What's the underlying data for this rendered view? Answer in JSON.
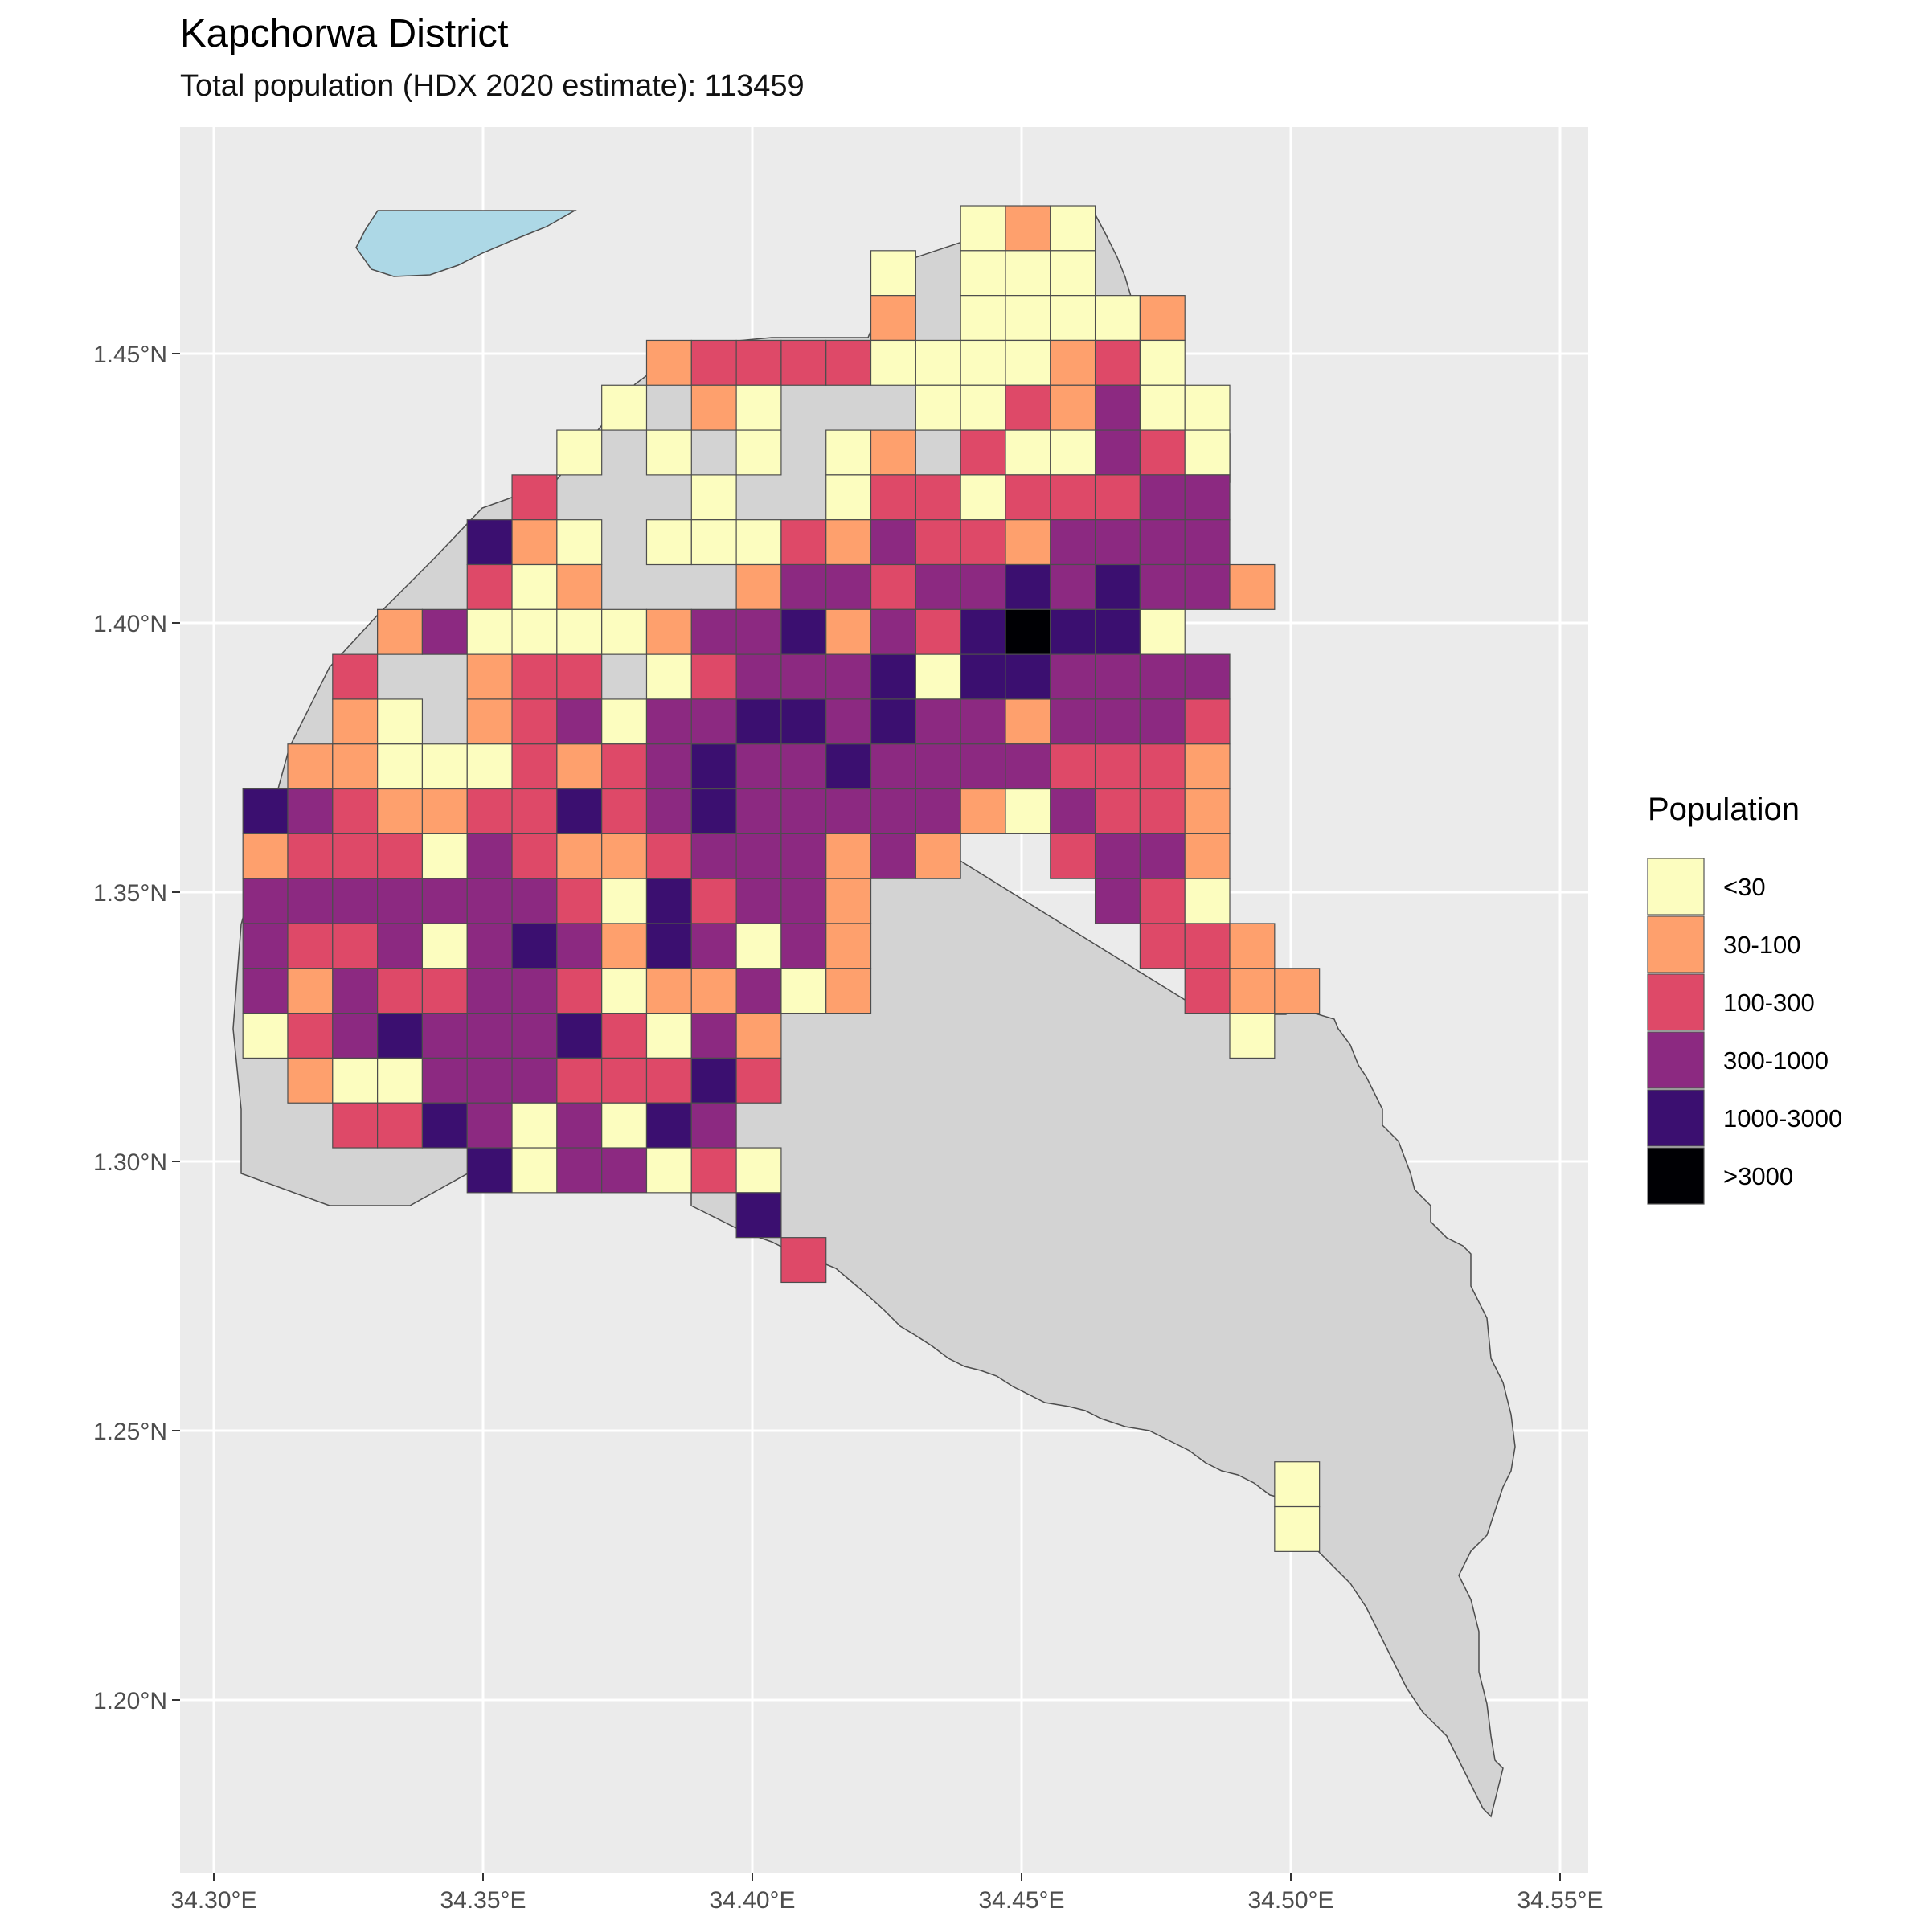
{
  "title": "Kapchorwa District",
  "subtitle": "Total population (HDX 2020 estimate): 113459",
  "chart_data": {
    "type": "heatmap",
    "x_ticks": [
      "34.30°E",
      "34.35°E",
      "34.40°E",
      "34.45°E",
      "34.50°E",
      "34.55°E"
    ],
    "y_ticks": [
      "1.20°N",
      "1.25°N",
      "1.30°N",
      "1.35°N",
      "1.40°N",
      "1.45°N"
    ],
    "xlim": [
      34.293,
      34.554
    ],
    "ylim": [
      1.172,
      1.486
    ],
    "grid": true,
    "cell_size_deg": 0.00833,
    "grid_origin": {
      "lon": 34.3054,
      "lat": 1.47746
    },
    "legend": {
      "title": "Population",
      "placement": "right",
      "classes": [
        {
          "label": "<30",
          "color": "#FCFDBF"
        },
        {
          "label": "30-100",
          "color": "#FEA06D"
        },
        {
          "label": "100-300",
          "color": "#DE4968"
        },
        {
          "label": "300-1000",
          "color": "#8C2981"
        },
        {
          "label": "1000-3000",
          "color": "#3B0F70"
        },
        {
          "label": ">3000",
          "color": "#000004"
        }
      ]
    },
    "district_fill": "#d3d3d3",
    "lake_fill": "#add8e6",
    "cells": [
      [
        16,
        0,
        0
      ],
      [
        17,
        0,
        1
      ],
      [
        18,
        0,
        0
      ],
      [
        14,
        1,
        0
      ],
      [
        16,
        1,
        0
      ],
      [
        17,
        1,
        0
      ],
      [
        18,
        1,
        0
      ],
      [
        14,
        2,
        1
      ],
      [
        16,
        2,
        0
      ],
      [
        17,
        2,
        0
      ],
      [
        18,
        2,
        0
      ],
      [
        19,
        2,
        0
      ],
      [
        20,
        2,
        1
      ],
      [
        9,
        3,
        1
      ],
      [
        10,
        3,
        2
      ],
      [
        11,
        3,
        2
      ],
      [
        12,
        3,
        2
      ],
      [
        13,
        3,
        2
      ],
      [
        14,
        3,
        0
      ],
      [
        15,
        3,
        0
      ],
      [
        16,
        3,
        0
      ],
      [
        17,
        3,
        0
      ],
      [
        18,
        3,
        1
      ],
      [
        19,
        3,
        2
      ],
      [
        20,
        3,
        0
      ],
      [
        8,
        4,
        0
      ],
      [
        10,
        4,
        1
      ],
      [
        11,
        4,
        0
      ],
      [
        15,
        4,
        0
      ],
      [
        16,
        4,
        0
      ],
      [
        17,
        4,
        2
      ],
      [
        18,
        4,
        1
      ],
      [
        19,
        4,
        3
      ],
      [
        20,
        4,
        0
      ],
      [
        21,
        4,
        0
      ],
      [
        7,
        5,
        0
      ],
      [
        9,
        5,
        0
      ],
      [
        11,
        5,
        0
      ],
      [
        13,
        5,
        0
      ],
      [
        14,
        5,
        1
      ],
      [
        16,
        5,
        2
      ],
      [
        17,
        5,
        0
      ],
      [
        18,
        5,
        0
      ],
      [
        19,
        5,
        3
      ],
      [
        20,
        5,
        2
      ],
      [
        21,
        5,
        0
      ],
      [
        6,
        6,
        2
      ],
      [
        10,
        6,
        0
      ],
      [
        13,
        6,
        0
      ],
      [
        14,
        6,
        2
      ],
      [
        15,
        6,
        2
      ],
      [
        16,
        6,
        0
      ],
      [
        17,
        6,
        2
      ],
      [
        18,
        6,
        2
      ],
      [
        19,
        6,
        2
      ],
      [
        20,
        6,
        3
      ],
      [
        21,
        6,
        3
      ],
      [
        5,
        7,
        4
      ],
      [
        6,
        7,
        1
      ],
      [
        7,
        7,
        0
      ],
      [
        9,
        7,
        0
      ],
      [
        10,
        7,
        0
      ],
      [
        11,
        7,
        0
      ],
      [
        12,
        7,
        2
      ],
      [
        13,
        7,
        1
      ],
      [
        14,
        7,
        3
      ],
      [
        15,
        7,
        2
      ],
      [
        16,
        7,
        2
      ],
      [
        17,
        7,
        1
      ],
      [
        18,
        7,
        3
      ],
      [
        19,
        7,
        3
      ],
      [
        20,
        7,
        3
      ],
      [
        21,
        7,
        3
      ],
      [
        5,
        8,
        2
      ],
      [
        6,
        8,
        0
      ],
      [
        7,
        8,
        1
      ],
      [
        11,
        8,
        1
      ],
      [
        12,
        8,
        3
      ],
      [
        13,
        8,
        3
      ],
      [
        14,
        8,
        2
      ],
      [
        15,
        8,
        3
      ],
      [
        16,
        8,
        3
      ],
      [
        17,
        8,
        4
      ],
      [
        18,
        8,
        3
      ],
      [
        19,
        8,
        4
      ],
      [
        20,
        8,
        3
      ],
      [
        21,
        8,
        3
      ],
      [
        22,
        8,
        1
      ],
      [
        3,
        9,
        1
      ],
      [
        4,
        9,
        3
      ],
      [
        5,
        9,
        0
      ],
      [
        6,
        9,
        0
      ],
      [
        7,
        9,
        0
      ],
      [
        8,
        9,
        0
      ],
      [
        9,
        9,
        1
      ],
      [
        10,
        9,
        3
      ],
      [
        11,
        9,
        3
      ],
      [
        12,
        9,
        4
      ],
      [
        13,
        9,
        1
      ],
      [
        14,
        9,
        3
      ],
      [
        15,
        9,
        2
      ],
      [
        16,
        9,
        4
      ],
      [
        17,
        9,
        5
      ],
      [
        18,
        9,
        4
      ],
      [
        19,
        9,
        4
      ],
      [
        20,
        9,
        0
      ],
      [
        2,
        10,
        2
      ],
      [
        5,
        10,
        1
      ],
      [
        6,
        10,
        2
      ],
      [
        7,
        10,
        2
      ],
      [
        9,
        10,
        0
      ],
      [
        10,
        10,
        2
      ],
      [
        11,
        10,
        3
      ],
      [
        12,
        10,
        3
      ],
      [
        13,
        10,
        3
      ],
      [
        14,
        10,
        4
      ],
      [
        15,
        10,
        0
      ],
      [
        16,
        10,
        4
      ],
      [
        17,
        10,
        4
      ],
      [
        18,
        10,
        3
      ],
      [
        19,
        10,
        3
      ],
      [
        20,
        10,
        3
      ],
      [
        21,
        10,
        3
      ],
      [
        2,
        11,
        1
      ],
      [
        3,
        11,
        0
      ],
      [
        5,
        11,
        1
      ],
      [
        6,
        11,
        2
      ],
      [
        7,
        11,
        3
      ],
      [
        8,
        11,
        0
      ],
      [
        9,
        11,
        3
      ],
      [
        10,
        11,
        3
      ],
      [
        11,
        11,
        4
      ],
      [
        12,
        11,
        4
      ],
      [
        13,
        11,
        3
      ],
      [
        14,
        11,
        4
      ],
      [
        15,
        11,
        3
      ],
      [
        16,
        11,
        3
      ],
      [
        17,
        11,
        1
      ],
      [
        18,
        11,
        3
      ],
      [
        19,
        11,
        3
      ],
      [
        20,
        11,
        3
      ],
      [
        21,
        11,
        2
      ],
      [
        1,
        12,
        1
      ],
      [
        2,
        12,
        1
      ],
      [
        3,
        12,
        0
      ],
      [
        4,
        12,
        0
      ],
      [
        5,
        12,
        0
      ],
      [
        6,
        12,
        2
      ],
      [
        7,
        12,
        1
      ],
      [
        8,
        12,
        2
      ],
      [
        9,
        12,
        3
      ],
      [
        10,
        12,
        4
      ],
      [
        11,
        12,
        3
      ],
      [
        12,
        12,
        3
      ],
      [
        13,
        12,
        4
      ],
      [
        14,
        12,
        3
      ],
      [
        15,
        12,
        3
      ],
      [
        16,
        12,
        3
      ],
      [
        17,
        12,
        3
      ],
      [
        18,
        12,
        2
      ],
      [
        19,
        12,
        2
      ],
      [
        20,
        12,
        2
      ],
      [
        21,
        12,
        1
      ],
      [
        0,
        13,
        4
      ],
      [
        1,
        13,
        3
      ],
      [
        2,
        13,
        2
      ],
      [
        3,
        13,
        1
      ],
      [
        4,
        13,
        1
      ],
      [
        5,
        13,
        2
      ],
      [
        6,
        13,
        2
      ],
      [
        7,
        13,
        4
      ],
      [
        8,
        13,
        2
      ],
      [
        9,
        13,
        3
      ],
      [
        10,
        13,
        4
      ],
      [
        11,
        13,
        3
      ],
      [
        12,
        13,
        3
      ],
      [
        13,
        13,
        3
      ],
      [
        14,
        13,
        3
      ],
      [
        15,
        13,
        3
      ],
      [
        16,
        13,
        1
      ],
      [
        17,
        13,
        0
      ],
      [
        18,
        13,
        3
      ],
      [
        19,
        13,
        2
      ],
      [
        20,
        13,
        2
      ],
      [
        21,
        13,
        1
      ],
      [
        0,
        14,
        1
      ],
      [
        1,
        14,
        2
      ],
      [
        2,
        14,
        2
      ],
      [
        3,
        14,
        2
      ],
      [
        4,
        14,
        0
      ],
      [
        5,
        14,
        3
      ],
      [
        6,
        14,
        2
      ],
      [
        7,
        14,
        1
      ],
      [
        8,
        14,
        1
      ],
      [
        9,
        14,
        2
      ],
      [
        10,
        14,
        3
      ],
      [
        11,
        14,
        3
      ],
      [
        12,
        14,
        3
      ],
      [
        13,
        14,
        1
      ],
      [
        14,
        14,
        3
      ],
      [
        15,
        14,
        1
      ],
      [
        18,
        14,
        2
      ],
      [
        19,
        14,
        3
      ],
      [
        20,
        14,
        3
      ],
      [
        21,
        14,
        1
      ],
      [
        0,
        15,
        3
      ],
      [
        1,
        15,
        3
      ],
      [
        2,
        15,
        3
      ],
      [
        3,
        15,
        3
      ],
      [
        4,
        15,
        3
      ],
      [
        5,
        15,
        3
      ],
      [
        6,
        15,
        3
      ],
      [
        7,
        15,
        2
      ],
      [
        8,
        15,
        0
      ],
      [
        9,
        15,
        4
      ],
      [
        10,
        15,
        2
      ],
      [
        11,
        15,
        3
      ],
      [
        12,
        15,
        3
      ],
      [
        13,
        15,
        1
      ],
      [
        19,
        15,
        3
      ],
      [
        20,
        15,
        2
      ],
      [
        21,
        15,
        0
      ],
      [
        0,
        16,
        3
      ],
      [
        1,
        16,
        2
      ],
      [
        2,
        16,
        2
      ],
      [
        3,
        16,
        3
      ],
      [
        4,
        16,
        0
      ],
      [
        5,
        16,
        3
      ],
      [
        6,
        16,
        4
      ],
      [
        7,
        16,
        3
      ],
      [
        8,
        16,
        1
      ],
      [
        9,
        16,
        4
      ],
      [
        10,
        16,
        3
      ],
      [
        11,
        16,
        0
      ],
      [
        12,
        16,
        3
      ],
      [
        13,
        16,
        1
      ],
      [
        20,
        16,
        2
      ],
      [
        21,
        16,
        2
      ],
      [
        22,
        16,
        1
      ],
      [
        0,
        17,
        3
      ],
      [
        1,
        17,
        1
      ],
      [
        2,
        17,
        3
      ],
      [
        3,
        17,
        2
      ],
      [
        4,
        17,
        2
      ],
      [
        5,
        17,
        3
      ],
      [
        6,
        17,
        3
      ],
      [
        7,
        17,
        2
      ],
      [
        8,
        17,
        0
      ],
      [
        9,
        17,
        1
      ],
      [
        10,
        17,
        1
      ],
      [
        11,
        17,
        3
      ],
      [
        12,
        17,
        0
      ],
      [
        13,
        17,
        1
      ],
      [
        21,
        17,
        2
      ],
      [
        22,
        17,
        1
      ],
      [
        23,
        17,
        1
      ],
      [
        0,
        18,
        0
      ],
      [
        1,
        18,
        2
      ],
      [
        2,
        18,
        3
      ],
      [
        3,
        18,
        4
      ],
      [
        4,
        18,
        3
      ],
      [
        5,
        18,
        3
      ],
      [
        6,
        18,
        3
      ],
      [
        7,
        18,
        4
      ],
      [
        8,
        18,
        2
      ],
      [
        9,
        18,
        0
      ],
      [
        10,
        18,
        3
      ],
      [
        11,
        18,
        1
      ],
      [
        22,
        18,
        0
      ],
      [
        1,
        19,
        1
      ],
      [
        2,
        19,
        0
      ],
      [
        3,
        19,
        0
      ],
      [
        4,
        19,
        3
      ],
      [
        5,
        19,
        3
      ],
      [
        6,
        19,
        3
      ],
      [
        7,
        19,
        2
      ],
      [
        8,
        19,
        2
      ],
      [
        9,
        19,
        2
      ],
      [
        10,
        19,
        4
      ],
      [
        11,
        19,
        2
      ],
      [
        2,
        20,
        2
      ],
      [
        3,
        20,
        2
      ],
      [
        4,
        20,
        4
      ],
      [
        5,
        20,
        3
      ],
      [
        6,
        20,
        0
      ],
      [
        7,
        20,
        3
      ],
      [
        8,
        20,
        0
      ],
      [
        9,
        20,
        4
      ],
      [
        10,
        20,
        3
      ],
      [
        5,
        21,
        4
      ],
      [
        6,
        21,
        0
      ],
      [
        7,
        21,
        3
      ],
      [
        8,
        21,
        3
      ],
      [
        9,
        21,
        0
      ],
      [
        10,
        21,
        2
      ],
      [
        11,
        21,
        0
      ],
      [
        11,
        22,
        4
      ],
      [
        12,
        23,
        2
      ],
      [
        23,
        28,
        0
      ],
      [
        23,
        29,
        0
      ]
    ]
  }
}
